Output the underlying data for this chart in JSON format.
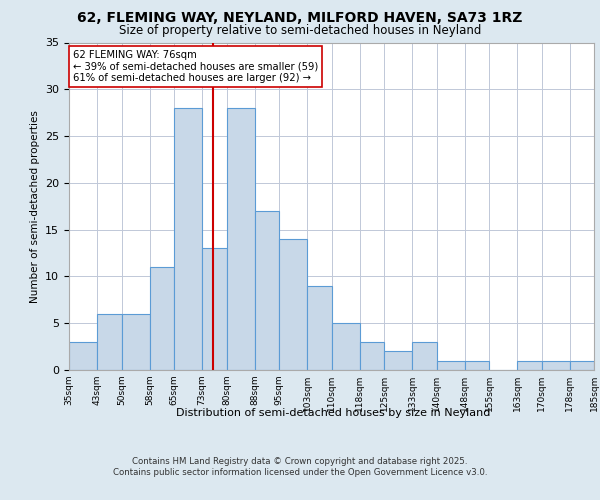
{
  "title1": "62, FLEMING WAY, NEYLAND, MILFORD HAVEN, SA73 1RZ",
  "title2": "Size of property relative to semi-detached houses in Neyland",
  "xlabel": "Distribution of semi-detached houses by size in Neyland",
  "ylabel": "Number of semi-detached properties",
  "bins": [
    35,
    43,
    50,
    58,
    65,
    73,
    80,
    88,
    95,
    103,
    110,
    118,
    125,
    133,
    140,
    148,
    155,
    163,
    170,
    178,
    185
  ],
  "counts": [
    3,
    6,
    6,
    11,
    28,
    13,
    28,
    17,
    14,
    9,
    5,
    3,
    2,
    3,
    1,
    1,
    0,
    1,
    1,
    1
  ],
  "bar_color": "#c8d8e8",
  "bar_edge_color": "#5b9bd5",
  "property_value": 76,
  "vline_color": "#cc0000",
  "annotation_text": "62 FLEMING WAY: 76sqm\n← 39% of semi-detached houses are smaller (59)\n61% of semi-detached houses are larger (92) →",
  "annotation_box_color": "#ffffff",
  "annotation_border_color": "#cc0000",
  "ylim": [
    0,
    35
  ],
  "yticks": [
    0,
    5,
    10,
    15,
    20,
    25,
    30,
    35
  ],
  "footer": "Contains HM Land Registry data © Crown copyright and database right 2025.\nContains public sector information licensed under the Open Government Licence v3.0.",
  "bg_color": "#dce8f0",
  "plot_bg_color": "#ffffff",
  "grid_color": "#c0c8d8"
}
